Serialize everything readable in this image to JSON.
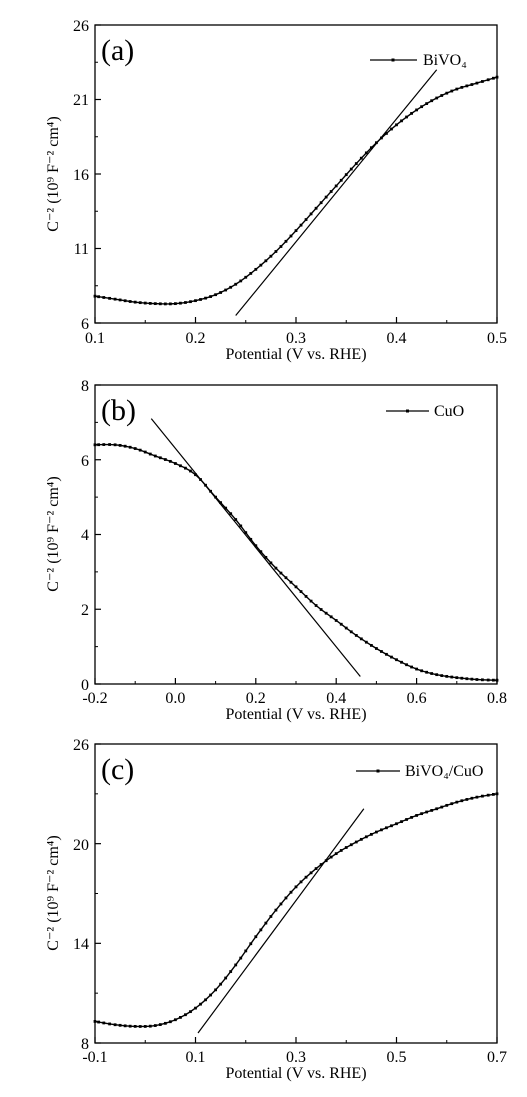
{
  "chart_data": [
    {
      "type": "line",
      "panel_label": "(a)",
      "xlabel": "Potential (V vs. RHE)",
      "ylabel": "C⁻² (10⁹ F⁻² cm⁴)",
      "xlim": [
        0.1,
        0.5
      ],
      "ylim": [
        6,
        26
      ],
      "xticks": [
        "0.1",
        "0.2",
        "0.3",
        "0.4",
        "0.5"
      ],
      "yticks": [
        "6",
        "11",
        "16",
        "21",
        "26"
      ],
      "legend": "BiVO₄",
      "legend_position": "top-right",
      "grid": false,
      "series": [
        {
          "name": "BiVO₄",
          "x": [
            0.1,
            0.12,
            0.14,
            0.16,
            0.18,
            0.2,
            0.22,
            0.24,
            0.26,
            0.28,
            0.3,
            0.32,
            0.34,
            0.36,
            0.38,
            0.4,
            0.42,
            0.44,
            0.46,
            0.48,
            0.5
          ],
          "y": [
            7.8,
            7.6,
            7.4,
            7.3,
            7.3,
            7.5,
            7.9,
            8.6,
            9.6,
            10.8,
            12.2,
            13.7,
            15.2,
            16.7,
            18.1,
            19.3,
            20.3,
            21.1,
            21.7,
            22.1,
            22.5
          ]
        }
      ],
      "fit_line": {
        "x": [
          0.24,
          0.44
        ],
        "y": [
          6.5,
          23.0
        ]
      }
    },
    {
      "type": "line",
      "panel_label": "(b)",
      "xlabel": "Potential (V vs. RHE)",
      "ylabel": "C⁻² (10⁹ F⁻² cm⁴)",
      "xlim": [
        -0.2,
        0.8
      ],
      "ylim": [
        0,
        8
      ],
      "xticks": [
        "-0.2",
        "0.0",
        "0.2",
        "0.4",
        "0.6",
        "0.8"
      ],
      "yticks": [
        "0",
        "2",
        "4",
        "6",
        "8"
      ],
      "legend": "CuO",
      "legend_position": "top-right",
      "grid": false,
      "series": [
        {
          "name": "CuO",
          "x": [
            -0.2,
            -0.15,
            -0.1,
            -0.05,
            0.0,
            0.05,
            0.1,
            0.15,
            0.2,
            0.25,
            0.3,
            0.35,
            0.4,
            0.45,
            0.5,
            0.55,
            0.6,
            0.65,
            0.7,
            0.75,
            0.8
          ],
          "y": [
            6.4,
            6.4,
            6.3,
            6.1,
            5.9,
            5.6,
            5.0,
            4.4,
            3.7,
            3.1,
            2.6,
            2.1,
            1.7,
            1.3,
            0.95,
            0.65,
            0.4,
            0.25,
            0.17,
            0.12,
            0.1
          ]
        }
      ],
      "fit_line": {
        "x": [
          -0.06,
          0.46
        ],
        "y": [
          7.1,
          0.2
        ]
      }
    },
    {
      "type": "line",
      "panel_label": "(c)",
      "xlabel": "Potential (V vs. RHE)",
      "ylabel": "C⁻² (10⁹ F⁻² cm⁴)",
      "xlim": [
        -0.1,
        0.7
      ],
      "ylim": [
        8,
        26
      ],
      "xticks": [
        "-0.1",
        "0.1",
        "0.3",
        "0.5",
        "0.7"
      ],
      "yticks": [
        "8",
        "14",
        "20",
        "26"
      ],
      "legend": "BiVO₄/CuO",
      "legend_position": "top-right",
      "grid": false,
      "series": [
        {
          "name": "BiVO₄/CuO",
          "x": [
            -0.1,
            -0.06,
            -0.02,
            0.02,
            0.06,
            0.1,
            0.14,
            0.18,
            0.22,
            0.26,
            0.3,
            0.34,
            0.38,
            0.42,
            0.46,
            0.5,
            0.54,
            0.58,
            0.62,
            0.66,
            0.7
          ],
          "y": [
            9.3,
            9.1,
            9.0,
            9.05,
            9.4,
            10.1,
            11.2,
            12.7,
            14.4,
            16.0,
            17.4,
            18.5,
            19.4,
            20.1,
            20.7,
            21.2,
            21.7,
            22.1,
            22.5,
            22.8,
            23.0
          ]
        }
      ],
      "fit_line": {
        "x": [
          0.105,
          0.435
        ],
        "y": [
          8.6,
          22.1
        ]
      }
    }
  ]
}
